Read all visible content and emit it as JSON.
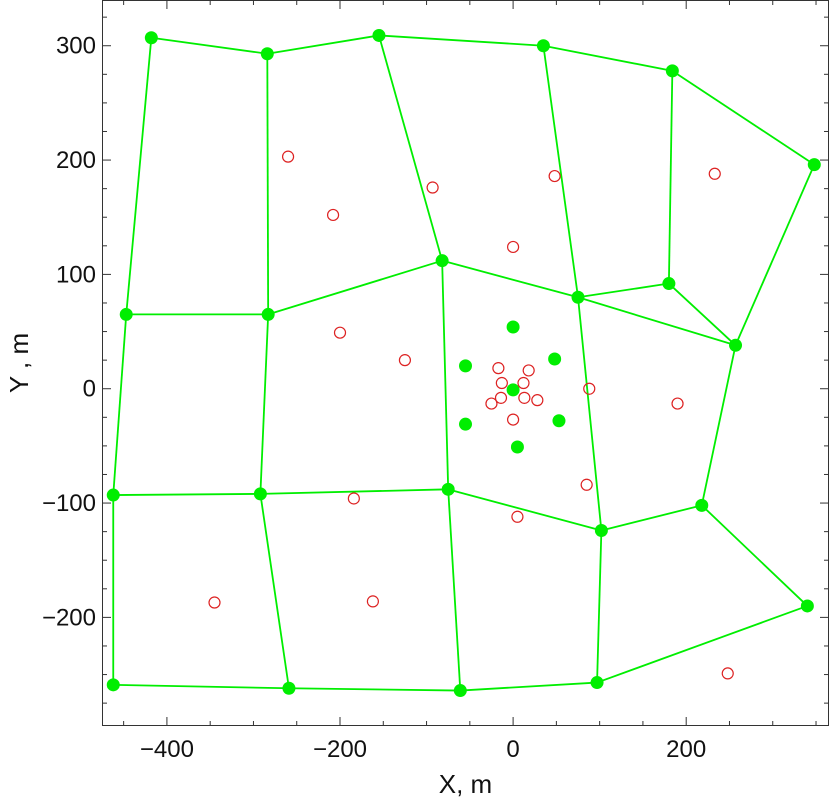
{
  "chart_data": {
    "type": "scatter",
    "xlabel": "X, m",
    "ylabel": "Y , m",
    "xlim": [
      -475,
      365
    ],
    "ylim": [
      -295,
      340
    ],
    "x_ticks": [
      -400,
      -200,
      0,
      200
    ],
    "x_tick_labels": [
      "−400",
      "−200",
      "0",
      "200"
    ],
    "y_ticks": [
      -200,
      -100,
      0,
      100,
      200,
      300
    ],
    "y_tick_labels": [
      "−200",
      "−100",
      "0",
      "100",
      "200",
      "300"
    ],
    "grid": false,
    "legend": "none",
    "colors": {
      "green": "#00ee00",
      "red": "#dd2222",
      "frame": "#333333"
    },
    "series": [
      {
        "marker": "filled-circle",
        "color": "#00ee00",
        "points": [
          [
            -418,
            307
          ],
          [
            -284,
            293
          ],
          [
            -155,
            309
          ],
          [
            35,
            300
          ],
          [
            184,
            278
          ],
          [
            348,
            196
          ],
          [
            -447,
            65
          ],
          [
            -283,
            65
          ],
          [
            -82,
            112
          ],
          [
            75,
            80
          ],
          [
            180,
            92
          ],
          [
            257,
            38
          ],
          [
            -462,
            -93
          ],
          [
            -292,
            -92
          ],
          [
            -75,
            -88
          ],
          [
            102,
            -124
          ],
          [
            218,
            -102
          ],
          [
            -462,
            -259
          ],
          [
            -259,
            -262
          ],
          [
            -61,
            -264
          ],
          [
            97,
            -257
          ],
          [
            340,
            -190
          ],
          [
            0,
            54
          ],
          [
            48,
            26
          ],
          [
            -55,
            20
          ],
          [
            0,
            -1
          ],
          [
            53,
            -28
          ],
          [
            -55,
            -31
          ],
          [
            5,
            -51
          ]
        ]
      },
      {
        "marker": "open-circle",
        "color": "#dd2222",
        "points": [
          [
            -260,
            203
          ],
          [
            -208,
            152
          ],
          [
            -93,
            176
          ],
          [
            48,
            186
          ],
          [
            233,
            188
          ],
          [
            0,
            124
          ],
          [
            -200,
            49
          ],
          [
            -125,
            25
          ],
          [
            -17,
            18
          ],
          [
            18,
            16
          ],
          [
            -13,
            5
          ],
          [
            12,
            5
          ],
          [
            88,
            0
          ],
          [
            -14,
            -8
          ],
          [
            13,
            -8
          ],
          [
            28,
            -10
          ],
          [
            -25,
            -13
          ],
          [
            190,
            -13
          ],
          [
            0,
            -27
          ],
          [
            85,
            -84
          ],
          [
            -184,
            -96
          ],
          [
            5,
            -112
          ],
          [
            -345,
            -187
          ],
          [
            -162,
            -186
          ],
          [
            248,
            -249
          ]
        ]
      }
    ],
    "mesh_edges": [
      [
        [
          -418,
          307
        ],
        [
          -284,
          293
        ]
      ],
      [
        [
          -284,
          293
        ],
        [
          -155,
          309
        ]
      ],
      [
        [
          -155,
          309
        ],
        [
          35,
          300
        ]
      ],
      [
        [
          35,
          300
        ],
        [
          184,
          278
        ]
      ],
      [
        [
          184,
          278
        ],
        [
          348,
          196
        ]
      ],
      [
        [
          -418,
          307
        ],
        [
          -447,
          65
        ]
      ],
      [
        [
          -284,
          293
        ],
        [
          -283,
          65
        ]
      ],
      [
        [
          -155,
          309
        ],
        [
          -82,
          112
        ]
      ],
      [
        [
          35,
          300
        ],
        [
          75,
          80
        ]
      ],
      [
        [
          184,
          278
        ],
        [
          180,
          92
        ]
      ],
      [
        [
          348,
          196
        ],
        [
          257,
          38
        ]
      ],
      [
        [
          -447,
          65
        ],
        [
          -283,
          65
        ]
      ],
      [
        [
          -283,
          65
        ],
        [
          -82,
          112
        ]
      ],
      [
        [
          -82,
          112
        ],
        [
          75,
          80
        ]
      ],
      [
        [
          75,
          80
        ],
        [
          180,
          92
        ]
      ],
      [
        [
          75,
          80
        ],
        [
          257,
          38
        ]
      ],
      [
        [
          180,
          92
        ],
        [
          257,
          38
        ]
      ],
      [
        [
          -447,
          65
        ],
        [
          -462,
          -93
        ]
      ],
      [
        [
          -283,
          65
        ],
        [
          -292,
          -92
        ]
      ],
      [
        [
          -82,
          112
        ],
        [
          -75,
          -88
        ]
      ],
      [
        [
          75,
          80
        ],
        [
          102,
          -124
        ]
      ],
      [
        [
          257,
          38
        ],
        [
          218,
          -102
        ]
      ],
      [
        [
          -462,
          -93
        ],
        [
          -292,
          -92
        ]
      ],
      [
        [
          -292,
          -92
        ],
        [
          -75,
          -88
        ]
      ],
      [
        [
          -75,
          -88
        ],
        [
          102,
          -124
        ]
      ],
      [
        [
          102,
          -124
        ],
        [
          218,
          -102
        ]
      ],
      [
        [
          218,
          -102
        ],
        [
          340,
          -190
        ]
      ],
      [
        [
          -462,
          -93
        ],
        [
          -462,
          -259
        ]
      ],
      [
        [
          -292,
          -92
        ],
        [
          -259,
          -262
        ]
      ],
      [
        [
          -75,
          -88
        ],
        [
          -61,
          -264
        ]
      ],
      [
        [
          102,
          -124
        ],
        [
          97,
          -257
        ]
      ],
      [
        [
          -462,
          -259
        ],
        [
          -259,
          -262
        ]
      ],
      [
        [
          -259,
          -262
        ],
        [
          -61,
          -264
        ]
      ],
      [
        [
          -61,
          -264
        ],
        [
          97,
          -257
        ]
      ],
      [
        [
          97,
          -257
        ],
        [
          340,
          -190
        ]
      ]
    ]
  }
}
